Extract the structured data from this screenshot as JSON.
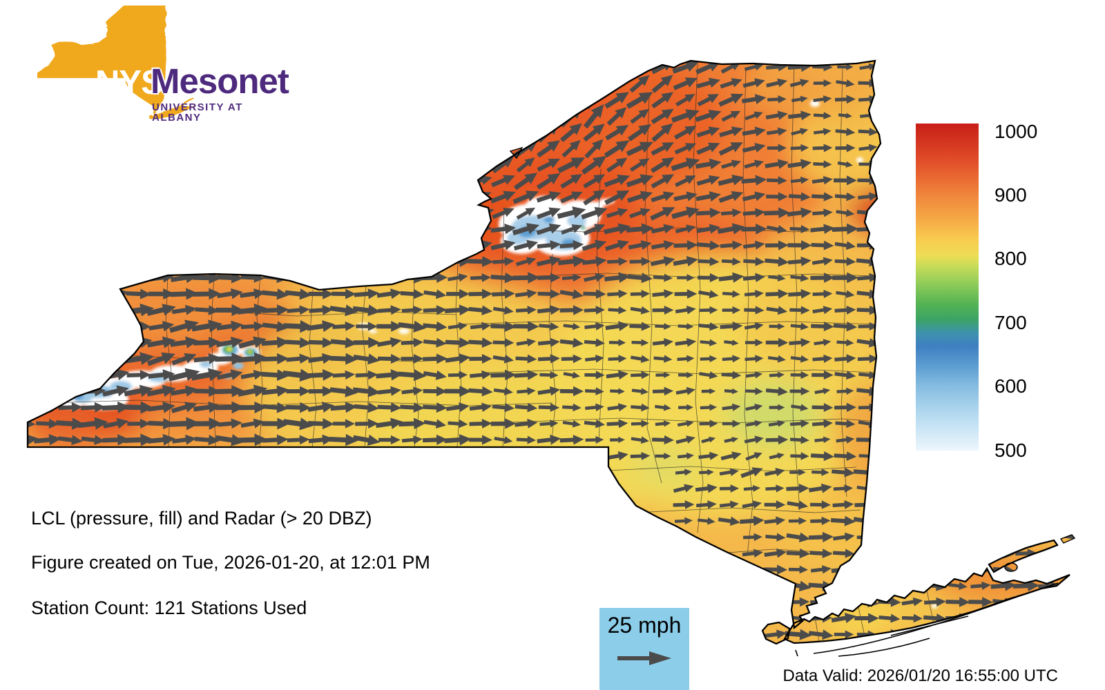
{
  "logo": {
    "nys": "NYS",
    "mesonet": "Mesonet",
    "university": "UNIVERSITY AT ALBANY"
  },
  "colorbar": {
    "ticks": [
      "1000",
      "900",
      "800",
      "700",
      "600",
      "500"
    ]
  },
  "captions": {
    "line1": "LCL (pressure, fill) and Radar (> 20 DBZ)",
    "line2": "Figure created on Tue, 2026-01-20, at 12:01 PM",
    "line3": "Station Count: 121 Stations Used"
  },
  "wind_legend": {
    "label": "25 mph"
  },
  "footer": {
    "data_valid": "Data Valid: 2026/01/20 16:55:00 UTC"
  },
  "colors": {
    "logo_yellow": "#F0A81C",
    "logo_purple": "#4E2A7E",
    "arrow_gray": "#4B4B4B",
    "legend_blue": "#8CCDE9",
    "state_base_fill": "#F5B84B",
    "outline_black": "#000000"
  }
}
